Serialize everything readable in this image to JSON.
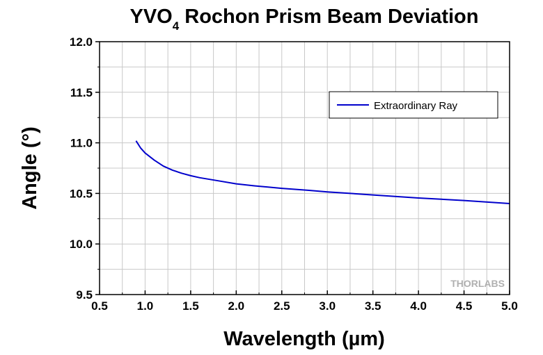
{
  "chart_data": {
    "type": "line",
    "title_main": "YVO",
    "title_sub": "4",
    "title_rest": " Rochon Prism Beam Deviation",
    "xlabel": "Wavelength (µm)",
    "ylabel": "Angle (°)",
    "xlim": [
      0.5,
      5.0
    ],
    "ylim": [
      9.5,
      12.0
    ],
    "x_ticks": [
      0.5,
      1.0,
      1.5,
      2.0,
      2.5,
      3.0,
      3.5,
      4.0,
      4.5,
      5.0
    ],
    "x_tick_labels": [
      "0.5",
      "1.0",
      "1.5",
      "2.0",
      "2.5",
      "3.0",
      "3.5",
      "4.0",
      "4.5",
      "5.0"
    ],
    "y_ticks": [
      9.5,
      10.0,
      10.5,
      11.0,
      11.5,
      12.0
    ],
    "y_tick_labels": [
      "9.5",
      "10.0",
      "10.5",
      "11.0",
      "11.5",
      "12.0"
    ],
    "grid": true,
    "legend_position": "top-right",
    "watermark": "THORLABS",
    "series": [
      {
        "name": "Extraordinary Ray",
        "color": "#0000cc",
        "x": [
          0.9,
          0.95,
          1.0,
          1.1,
          1.2,
          1.3,
          1.4,
          1.5,
          1.6,
          1.8,
          2.0,
          2.2,
          2.5,
          2.8,
          3.0,
          3.5,
          4.0,
          4.5,
          5.0
        ],
        "y": [
          11.02,
          10.95,
          10.9,
          10.83,
          10.77,
          10.73,
          10.7,
          10.675,
          10.655,
          10.625,
          10.595,
          10.575,
          10.55,
          10.53,
          10.515,
          10.485,
          10.455,
          10.43,
          10.4
        ]
      }
    ]
  }
}
